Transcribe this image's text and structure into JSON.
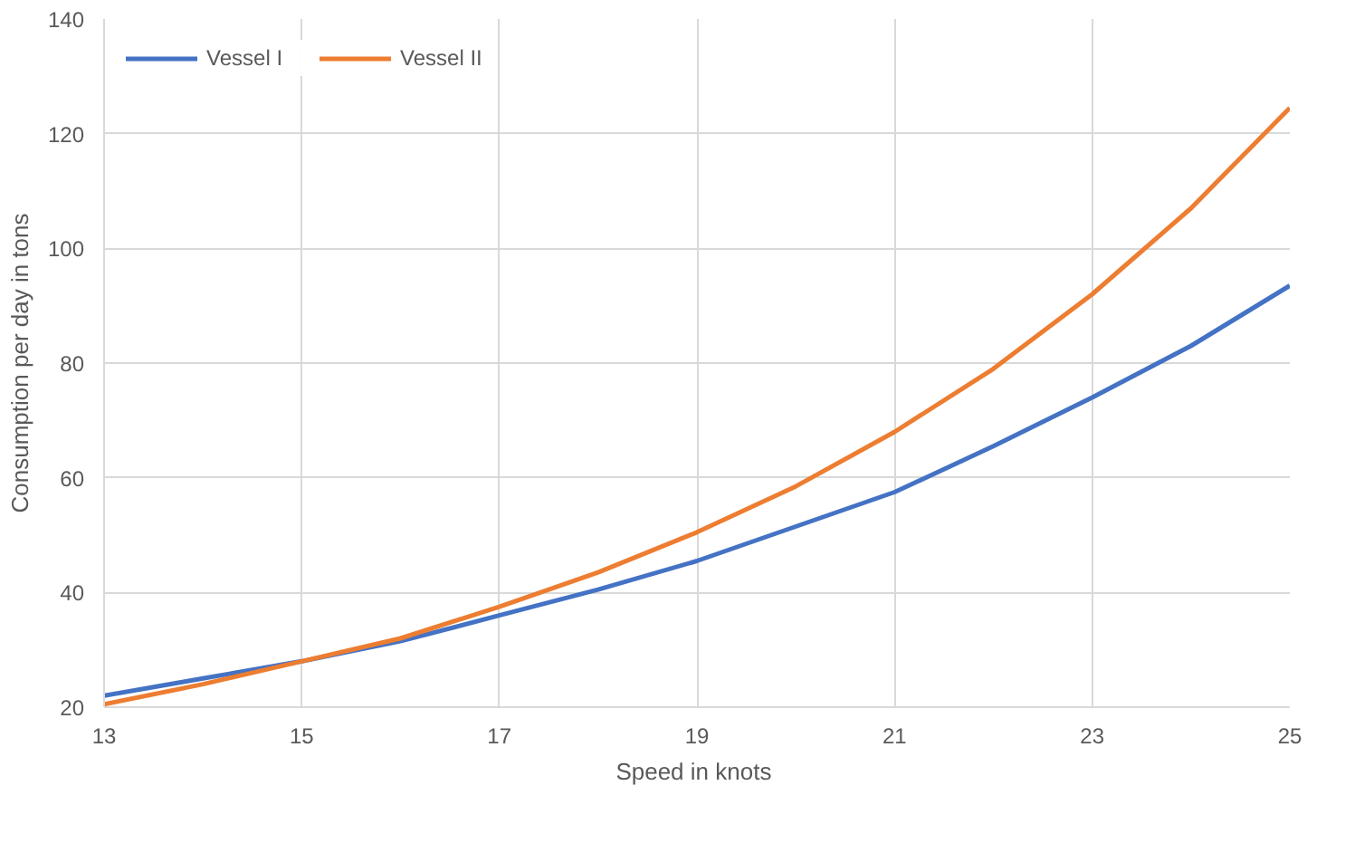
{
  "chart_data": {
    "type": "line",
    "xlabel": "Speed  in knots",
    "ylabel": "Consumption per day in tons",
    "x": [
      13,
      14,
      15,
      16,
      17,
      18,
      19,
      20,
      21,
      22,
      23,
      24,
      25
    ],
    "series": [
      {
        "name": "Vessel I",
        "color": "#4472c4",
        "values": [
          22,
          25,
          28,
          31.5,
          36,
          40.5,
          45.5,
          51.5,
          57.5,
          65.5,
          74,
          83,
          93.5
        ]
      },
      {
        "name": "Vessel II",
        "color": "#ed7d31",
        "values": [
          20.5,
          24,
          28,
          32,
          37.5,
          43.5,
          50.5,
          58.5,
          68,
          79,
          92,
          107,
          124.5
        ]
      }
    ],
    "xlim": [
      13,
      25
    ],
    "xticks": [
      13,
      15,
      17,
      19,
      21,
      23,
      25
    ],
    "ylim": [
      20,
      140
    ],
    "yticks": [
      20,
      40,
      60,
      80,
      100,
      120,
      140
    ],
    "grid": true,
    "legend": "top left",
    "marker": "none",
    "line_style": "solid"
  }
}
